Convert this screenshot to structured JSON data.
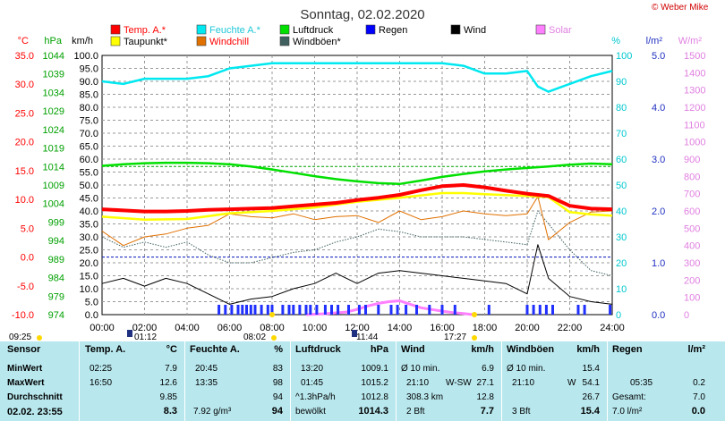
{
  "chart_data": {
    "type": "line",
    "title": "Sonntag, 02.02.2020",
    "credit": "© Weber Mike",
    "x_ticks": [
      "00:00",
      "02:00",
      "04:00",
      "06:00",
      "08:00",
      "10:00",
      "12:00",
      "14:00",
      "16:00",
      "18:00",
      "20:00",
      "22:00",
      "24:00"
    ],
    "x_range": [
      0,
      24
    ],
    "axes": {
      "temp": {
        "unit": "°C",
        "ticks": [
          "35.0",
          "30.0",
          "25.0",
          "20.0",
          "15.0",
          "10.0",
          "5.0",
          "0.0",
          "-5.0",
          "-10.0"
        ],
        "range": [
          -10,
          35
        ],
        "color": "#ff0000"
      },
      "pressure": {
        "unit": "hPa",
        "ticks": [
          "1044",
          "1039",
          "1034",
          "1029",
          "1024",
          "1019",
          "1014",
          "1009",
          "1004",
          "999",
          "994",
          "989",
          "984",
          "979",
          "974"
        ],
        "range": [
          974,
          1044
        ],
        "color": "#00a000"
      },
      "wind": {
        "unit": "km/h",
        "ticks": [
          "100.0",
          "95.0",
          "90.0",
          "85.0",
          "80.0",
          "75.0",
          "70.0",
          "65.0",
          "60.0",
          "55.0",
          "50.0",
          "45.0",
          "40.0",
          "35.0",
          "30.0",
          "25.0",
          "20.0",
          "15.0",
          "10.0",
          "5.0",
          "0.0"
        ],
        "range": [
          0,
          100
        ],
        "color": "#000000"
      },
      "humidity": {
        "unit": "%",
        "ticks": [
          "100",
          "90",
          "80",
          "70",
          "60",
          "50",
          "40",
          "30",
          "20",
          "10",
          "0"
        ],
        "range": [
          0,
          100
        ],
        "color": "#00c8d0"
      },
      "rain": {
        "unit": "l/m²",
        "ticks": [
          "5.0",
          "4.0",
          "3.0",
          "2.0",
          "1.0",
          "0.0"
        ],
        "range": [
          0,
          5
        ],
        "color": "#2030c0"
      },
      "solar": {
        "unit": "W/m²",
        "ticks": [
          "1500",
          "1400",
          "1300",
          "1200",
          "1100",
          "1000",
          "900",
          "800",
          "700",
          "600",
          "500",
          "400",
          "300",
          "200",
          "100",
          "0"
        ],
        "range": [
          0,
          1500
        ],
        "color": "#e080e0"
      }
    },
    "legend": [
      {
        "name": "Temp. A.*",
        "color": "#ff0000"
      },
      {
        "name": "Feuchte A.*",
        "color": "#00e8f0"
      },
      {
        "name": "Luftdruck",
        "color": "#00e000"
      },
      {
        "name": "Regen",
        "color": "#0000ff"
      },
      {
        "name": "Wind",
        "color": "#000000"
      },
      {
        "name": "Solar",
        "color": "#ff80ff"
      },
      {
        "name": "Taupunkt*",
        "color": "#ffff00"
      },
      {
        "name": "Windchill",
        "color": "#e07000"
      },
      {
        "name": "Windböen*",
        "color": "#406060"
      }
    ],
    "series": [
      {
        "name": "Temp. A.*",
        "axis": "temp",
        "x": [
          0,
          1,
          2,
          3,
          4,
          5,
          6,
          7,
          8,
          9,
          10,
          11,
          12,
          13,
          14,
          15,
          16,
          17,
          18,
          19,
          20,
          21,
          22,
          23,
          24
        ],
        "values": [
          8.3,
          8.1,
          7.9,
          7.9,
          8.0,
          8.2,
          8.3,
          8.4,
          8.5,
          8.8,
          9.1,
          9.4,
          9.9,
          10.3,
          10.8,
          11.6,
          12.3,
          12.5,
          12.1,
          11.5,
          11.0,
          10.6,
          8.9,
          8.4,
          8.3
        ]
      },
      {
        "name": "Taupunkt*",
        "axis": "temp",
        "x": [
          0,
          2,
          4,
          6,
          8,
          10,
          12,
          14,
          16,
          17,
          18,
          20,
          21,
          22,
          23,
          24
        ],
        "values": [
          7.0,
          6.5,
          6.6,
          7.6,
          8.0,
          8.6,
          9.6,
          10.3,
          11.1,
          11.1,
          10.9,
          10.6,
          10.4,
          7.8,
          7.4,
          7.2
        ]
      },
      {
        "name": "Feuchte A.*",
        "axis": "humidity",
        "x": [
          0,
          1,
          2,
          3,
          4,
          5,
          6,
          7,
          8,
          9,
          10,
          11,
          12,
          13,
          14,
          15,
          16,
          17,
          18,
          19,
          20,
          20.5,
          21,
          22,
          23,
          24
        ],
        "values": [
          90,
          89,
          91,
          91,
          91,
          92,
          95,
          96,
          97,
          97,
          97,
          97,
          97,
          97,
          97,
          97,
          97,
          96,
          93,
          93,
          94,
          88,
          86,
          89,
          92,
          94
        ]
      },
      {
        "name": "Luftdruck",
        "axis": "pressure",
        "x": [
          0,
          1,
          2,
          3,
          4,
          5,
          6,
          7,
          8,
          9,
          10,
          11,
          12,
          13,
          14,
          15,
          16,
          17,
          18,
          19,
          20,
          21,
          22,
          23,
          24
        ],
        "values": [
          1014.2,
          1014.6,
          1014.9,
          1015.0,
          1015.0,
          1014.9,
          1014.6,
          1014.0,
          1013.2,
          1012.3,
          1011.4,
          1010.6,
          1010.0,
          1009.5,
          1009.3,
          1010.2,
          1011.2,
          1012.0,
          1012.7,
          1013.2,
          1013.6,
          1014.0,
          1014.5,
          1014.8,
          1014.6
        ]
      },
      {
        "name": "Windchill",
        "axis": "temp",
        "x": [
          0,
          1,
          2,
          3,
          4,
          5,
          6,
          7,
          8,
          9,
          10,
          11,
          12,
          13,
          14,
          15,
          16,
          17,
          18,
          19,
          20,
          20.5,
          21,
          22,
          23,
          24
        ],
        "values": [
          4.5,
          2.0,
          3.5,
          4.0,
          5.0,
          5.5,
          7.5,
          7.0,
          6.8,
          7.5,
          6.5,
          7.0,
          7.2,
          6.0,
          8.0,
          6.5,
          7.0,
          8.0,
          7.5,
          7.2,
          7.5,
          10.5,
          3.0,
          6.0,
          7.8,
          8.0
        ]
      },
      {
        "name": "Windböen*",
        "axis": "wind",
        "x": [
          0,
          1,
          2,
          3,
          4,
          5,
          6,
          7,
          8,
          9,
          10,
          11,
          12,
          13,
          14,
          15,
          16,
          17,
          18,
          19,
          20,
          20.5,
          21,
          22,
          23,
          24
        ],
        "values": [
          30,
          26,
          28,
          26,
          28,
          23,
          20,
          20,
          22,
          24,
          25,
          28,
          30,
          33,
          32,
          30,
          30,
          30,
          29,
          28,
          27,
          40,
          35,
          25,
          17,
          15
        ]
      },
      {
        "name": "Wind",
        "axis": "wind",
        "x": [
          0,
          1,
          2,
          3,
          4,
          5,
          6,
          7,
          8,
          9,
          10,
          11,
          12,
          13,
          14,
          15,
          16,
          17,
          18,
          19,
          20,
          20.5,
          21,
          22,
          23,
          24
        ],
        "values": [
          12,
          14,
          11,
          14,
          12,
          8,
          4,
          6,
          7,
          10,
          12,
          16,
          12,
          16,
          17,
          16,
          15,
          14,
          13,
          12,
          8,
          27,
          14,
          7,
          5,
          4
        ]
      },
      {
        "name": "Solar",
        "axis": "solar",
        "x": [
          9.6,
          10.5,
          11.5,
          12,
          12.5,
          13,
          13.5,
          14,
          14.5,
          15,
          15.5,
          16,
          16.5,
          17,
          17.45
        ],
        "values": [
          0,
          5,
          15,
          30,
          50,
          65,
          75,
          80,
          60,
          40,
          30,
          20,
          12,
          6,
          0
        ]
      }
    ],
    "rain_markers_h": [
      5.5,
      5.8,
      6.1,
      6.4,
      6.6,
      6.8,
      7.0,
      7.2,
      7.5,
      7.8,
      8.0,
      8.5,
      8.8,
      9.0,
      9.3,
      9.6,
      9.8,
      10.1,
      10.5,
      10.8,
      11.1,
      11.6,
      12.1,
      12.4,
      13.0,
      13.6,
      13.9,
      14.3,
      14.8,
      15.4,
      16.0,
      16.6,
      18.2,
      20.0,
      20.3,
      20.6,
      20.9,
      21.2,
      22.4,
      22.7,
      23.9
    ],
    "reference_lines": {
      "temp_zero": 0.0,
      "pressure_line": 1014.0
    },
    "time_marks": [
      "09:25",
      "01:12",
      "08:02",
      "11:44",
      "17:27"
    ]
  },
  "stats": {
    "sensor": {
      "header": "Sensor",
      "rows": [
        "MinWert",
        "MaxWert",
        "Durchschnitt",
        "02.02. 23:55"
      ]
    },
    "temp": {
      "header": "Temp. A.",
      "unit": "°C",
      "min_time": "02:25",
      "min": "7.9",
      "max_time": "16:50",
      "max": "12.6",
      "avg": "9.85",
      "current": "8.3"
    },
    "humidity": {
      "header": "Feuchte A.",
      "unit": "%",
      "min_time": "20:45",
      "min": "83",
      "max_time": "13:35",
      "max": "98",
      "avg": "94",
      "abs": "7.92 g/m³",
      "current": "94"
    },
    "pressure": {
      "header": "Luftdruck",
      "unit": "hPa",
      "min_time": "13:20",
      "min": "1009.1",
      "max_time": "01:45",
      "max": "1015.2",
      "trend": "^1.3hPa/h",
      "avg": "1012.8",
      "state": "bewölkt",
      "current": "1014.3"
    },
    "wind": {
      "header": "Wind",
      "unit": "km/h",
      "min_label": "Ø 10 min.",
      "min": "6.9",
      "max_time": "21:10",
      "max_dir": "W-SW",
      "max": "27.1",
      "dist": "308.3 km",
      "avg": "12.8",
      "bft": "2 Bft",
      "current": "7.7"
    },
    "gusts": {
      "header": "Windböen",
      "unit": "km/h",
      "min_label": "Ø 10 min.",
      "min": "15.4",
      "max_time": "21:10",
      "max_dir": "W",
      "max": "54.1",
      "avg": "26.7",
      "bft": "3 Bft",
      "current": "15.4"
    },
    "rain": {
      "header": "Regen",
      "unit": "l/m²",
      "max_time": "05:35",
      "max": "0.2",
      "total_label": "Gesamt:",
      "total": "7.0",
      "current_label": "7.0 l/m²",
      "current": "0.0"
    }
  }
}
